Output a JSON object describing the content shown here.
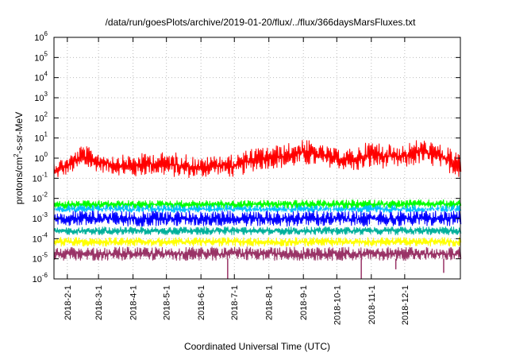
{
  "chart_data": {
    "type": "line",
    "title": "/data/run/goesPlots/archive/2019-01-20/flux/../flux/366daysMarsFluxes.txt",
    "xlabel": "Coordinated Universal Time (UTC)",
    "ylabel": {
      "pre": "protons/cm",
      "sup": "2",
      "post": "-s-sr-MeV"
    },
    "yscale": "log",
    "ylim": [
      1e-06,
      1000000.0
    ],
    "y_ticks": [
      {
        "base": "10",
        "exp": "-6"
      },
      {
        "base": "10",
        "exp": "-5"
      },
      {
        "base": "10",
        "exp": "-4"
      },
      {
        "base": "10",
        "exp": "-3"
      },
      {
        "base": "10",
        "exp": "-2"
      },
      {
        "base": "10",
        "exp": "-1"
      },
      {
        "base": "10",
        "exp": "0"
      },
      {
        "base": "10",
        "exp": "1"
      },
      {
        "base": "10",
        "exp": "2"
      },
      {
        "base": "10",
        "exp": "3"
      },
      {
        "base": "10",
        "exp": "4"
      },
      {
        "base": "10",
        "exp": "5"
      },
      {
        "base": "10",
        "exp": "6"
      }
    ],
    "xlim": [
      "2018-01-20",
      "2019-01-20"
    ],
    "x_ticks": [
      "2018-2-1",
      "2018-3-1",
      "2018-4-1",
      "2018-5-1",
      "2018-6-1",
      "2018-7-1",
      "2018-8-1",
      "2018-9-1",
      "2018-10-1",
      "2018-11-1",
      "2018-12-1"
    ],
    "grid": true,
    "series": [
      {
        "color": "#ff0000",
        "x": [
          "2018-01-20",
          "2018-02-01",
          "2018-02-15",
          "2018-03-01",
          "2018-03-15",
          "2018-04-01",
          "2018-04-15",
          "2018-05-01",
          "2018-05-15",
          "2018-06-01",
          "2018-06-15",
          "2018-07-01",
          "2018-07-15",
          "2018-08-01",
          "2018-08-15",
          "2018-09-01",
          "2018-09-15",
          "2018-10-01",
          "2018-10-15",
          "2018-11-01",
          "2018-11-15",
          "2018-12-01",
          "2018-12-15",
          "2019-01-01",
          "2019-01-20"
        ],
        "lo": [
          0.08,
          0.15,
          0.3,
          0.2,
          0.15,
          0.1,
          0.15,
          0.12,
          0.1,
          0.1,
          0.15,
          0.1,
          0.2,
          0.3,
          0.3,
          0.4,
          0.4,
          0.3,
          0.2,
          0.3,
          0.3,
          0.3,
          0.5,
          0.3,
          0.1
        ],
        "hi": [
          0.8,
          1.2,
          5,
          2,
          1.5,
          1.5,
          2,
          2,
          2,
          1,
          1.5,
          1.5,
          3,
          4,
          5,
          10,
          5,
          3,
          3,
          8,
          5,
          5,
          10,
          5,
          2
        ]
      },
      {
        "color": "#00ff00",
        "x": [
          "2018-01-20",
          "2019-01-20"
        ],
        "lo": [
          0.003,
          0.003
        ],
        "hi": [
          0.008,
          0.009
        ]
      },
      {
        "color": "#00bfff",
        "x": [
          "2018-01-20",
          "2019-01-20"
        ],
        "lo": [
          0.0015,
          0.0015
        ],
        "hi": [
          0.005,
          0.005
        ]
      },
      {
        "color": "#ffffff",
        "x": [
          "2018-01-20",
          "2019-01-20"
        ],
        "lo": [
          0.0012,
          0.0012
        ],
        "hi": [
          0.003,
          0.003
        ]
      },
      {
        "color": "#0000ff",
        "x": [
          "2018-01-20",
          "2019-01-20"
        ],
        "lo": [
          0.0004,
          0.0004
        ],
        "hi": [
          0.0025,
          0.0025
        ]
      },
      {
        "color": "#00b09b",
        "x": [
          "2018-01-20",
          "2019-01-20"
        ],
        "lo": [
          0.00015,
          0.00015
        ],
        "hi": [
          0.0004,
          0.0004
        ]
      },
      {
        "color": "#ffff00",
        "x": [
          "2018-01-20",
          "2019-01-20"
        ],
        "lo": [
          4e-05,
          4e-05
        ],
        "hi": [
          0.00012,
          0.00012
        ]
      },
      {
        "color": "#993366",
        "x": [
          "2018-01-20",
          "2019-01-20"
        ],
        "lo": [
          8e-06,
          8e-06
        ],
        "hi": [
          4e-05,
          4e-05
        ]
      }
    ],
    "dips": [
      {
        "color": "#993366",
        "x": "2018-06-25",
        "y": 1e-06
      },
      {
        "color": "#993366",
        "x": "2018-10-23",
        "y": 1e-06
      },
      {
        "color": "#993366",
        "x": "2018-11-23",
        "y": 3e-06
      },
      {
        "color": "#993366",
        "x": "2019-01-05",
        "y": 2e-06
      }
    ]
  }
}
